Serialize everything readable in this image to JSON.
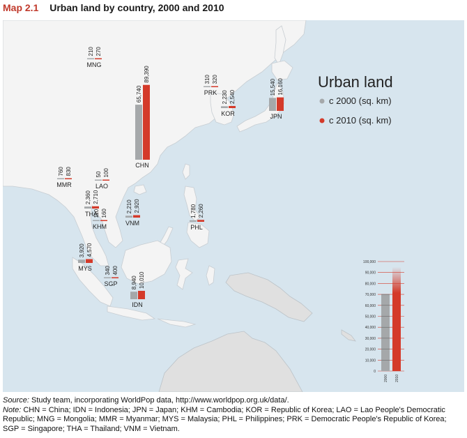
{
  "title": {
    "label": "Map 2.1",
    "text": "Urban land by country, 2000 and 2010"
  },
  "legend": {
    "title": "Urban land",
    "items": [
      {
        "label": "c 2000 (sq. km)",
        "color": "#a5a8aa"
      },
      {
        "label": "c 2010 (sq. km)",
        "color": "#d43a2a"
      }
    ]
  },
  "colors": {
    "c2000": "#a5a8aa",
    "c2010": "#d43a2a",
    "ocean": "#d7e5ee",
    "land": "#f4f4f4",
    "other_land": "#e0e0e0"
  },
  "scale": {
    "ticks": [
      "100,000",
      "90,000",
      "80,000",
      "70,000",
      "60,000",
      "50,000",
      "40,000",
      "30,000",
      "20,000",
      "10,000",
      "0"
    ],
    "tick_values": [
      100000,
      90000,
      80000,
      70000,
      60000,
      50000,
      40000,
      30000,
      20000,
      10000,
      0
    ],
    "years": [
      "2000",
      "2010"
    ],
    "values": [
      70000,
      90000
    ]
  },
  "countries": [
    {
      "code": "MNG",
      "v2000": "210",
      "v2010": "270",
      "n2000": 210,
      "n2010": 270
    },
    {
      "code": "CHN",
      "v2000": "65,740",
      "v2010": "89,390",
      "n2000": 65740,
      "n2010": 89390
    },
    {
      "code": "PRK",
      "v2000": "310",
      "v2010": "320",
      "n2000": 310,
      "n2010": 320
    },
    {
      "code": "KOR",
      "v2000": "2,230",
      "v2010": "2,540",
      "n2000": 2230,
      "n2010": 2540
    },
    {
      "code": "JPN",
      "v2000": "15,540",
      "v2010": "16,160",
      "n2000": 15540,
      "n2010": 16160
    },
    {
      "code": "MMR",
      "v2000": "760",
      "v2010": "830",
      "n2000": 760,
      "n2010": 830
    },
    {
      "code": "LAO",
      "v2000": "50",
      "v2010": "100",
      "n2000": 50,
      "n2010": 100
    },
    {
      "code": "THA",
      "v2000": "2,360",
      "v2010": "2,710",
      "n2000": 2360,
      "n2010": 2710
    },
    {
      "code": "KHM",
      "v2000": "110",
      "v2010": "160",
      "n2000": 110,
      "n2010": 160
    },
    {
      "code": "VNM",
      "v2000": "2,210",
      "v2010": "2,920",
      "n2000": 2210,
      "n2010": 2920
    },
    {
      "code": "PHL",
      "v2000": "1,780",
      "v2010": "2,260",
      "n2000": 1780,
      "n2010": 2260
    },
    {
      "code": "MYS",
      "v2000": "3,920",
      "v2010": "4,570",
      "n2000": 3920,
      "n2010": 4570
    },
    {
      "code": "SGP",
      "v2000": "340",
      "v2010": "400",
      "n2000": 340,
      "n2010": 400
    },
    {
      "code": "IDN",
      "v2000": "8,940",
      "v2010": "10,010",
      "n2000": 8940,
      "n2010": 10010
    }
  ],
  "source": {
    "label": "Source:",
    "text": " Study team, incorporating WorldPop data, http://www.worldpop.org.uk/data/."
  },
  "note": {
    "label": "Note:",
    "text": " CHN = China; IDN = Indonesia; JPN = Japan; KHM = Cambodia; KOR = Republic of Korea; LAO = Lao People's Democratic Republic; MNG = Mongolia; MMR = Myanmar; MYS = Malaysia; PHL = Philippines; PRK = Democratic People's Republic of Korea; SGP = Singapore; THA = Thailand; VNM = Vietnam."
  }
}
